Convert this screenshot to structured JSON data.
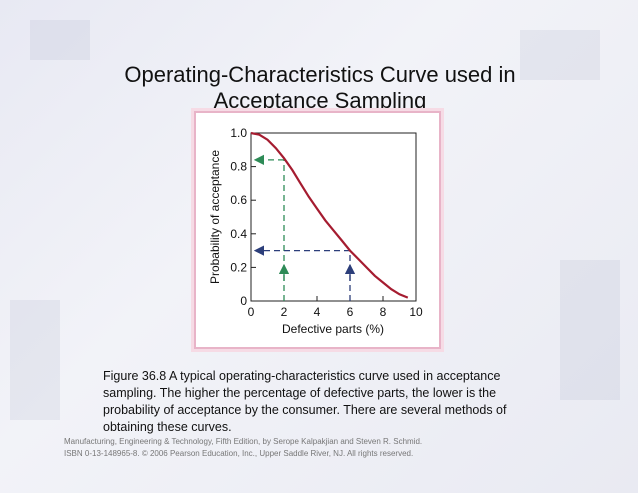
{
  "slide": {
    "title_line1": "Operating-Characteristics Curve used in",
    "title_line2": "Acceptance Sampling",
    "caption": "Figure 36.8  A typical operating-characteristics curve used in acceptance sampling.  The higher the percentage of defective parts, the lower is the probability of acceptance by the consumer.  There are several methods of obtaining these curves.",
    "footer_line1": "Manufacturing, Engineering & Technology, Fifth Edition, by Serope Kalpakjian and Steven R. Schmid.",
    "footer_line2": "ISBN 0-13-148965-8. © 2006 Pearson Education, Inc., Upper Saddle River, NJ.  All rights reserved."
  },
  "chart_data": {
    "type": "line",
    "xlabel": "Defective parts (%)",
    "ylabel": "Probability of acceptance",
    "xlim": [
      0,
      10
    ],
    "ylim": [
      0,
      1.0
    ],
    "x_ticks": [
      0,
      2,
      4,
      6,
      8,
      10
    ],
    "x_tick_labels": [
      "0",
      "2",
      "4",
      "6",
      "8",
      "10"
    ],
    "y_ticks": [
      0,
      0.2,
      0.4,
      0.6,
      0.8,
      1.0
    ],
    "y_tick_labels": [
      "0",
      "0.2",
      "0.4",
      "0.6",
      "0.8",
      "1.0"
    ],
    "grid": false,
    "curve_color": "#a51c30",
    "guide_colors": [
      "#2e8b57",
      "#2c3e7a"
    ],
    "series": [
      {
        "x": [
          0,
          0.5,
          1,
          1.5,
          2,
          2.5,
          3,
          3.5,
          4,
          4.5,
          5,
          5.5,
          6,
          6.5,
          7,
          7.5,
          8,
          8.5,
          9,
          9.5
        ],
        "y": [
          1.0,
          0.99,
          0.96,
          0.91,
          0.85,
          0.78,
          0.7,
          0.62,
          0.55,
          0.48,
          0.42,
          0.36,
          0.3,
          0.25,
          0.2,
          0.15,
          0.11,
          0.07,
          0.04,
          0.02
        ]
      }
    ],
    "guides": [
      {
        "x": 2,
        "y": 0.84
      },
      {
        "x": 6,
        "y": 0.3
      }
    ]
  }
}
